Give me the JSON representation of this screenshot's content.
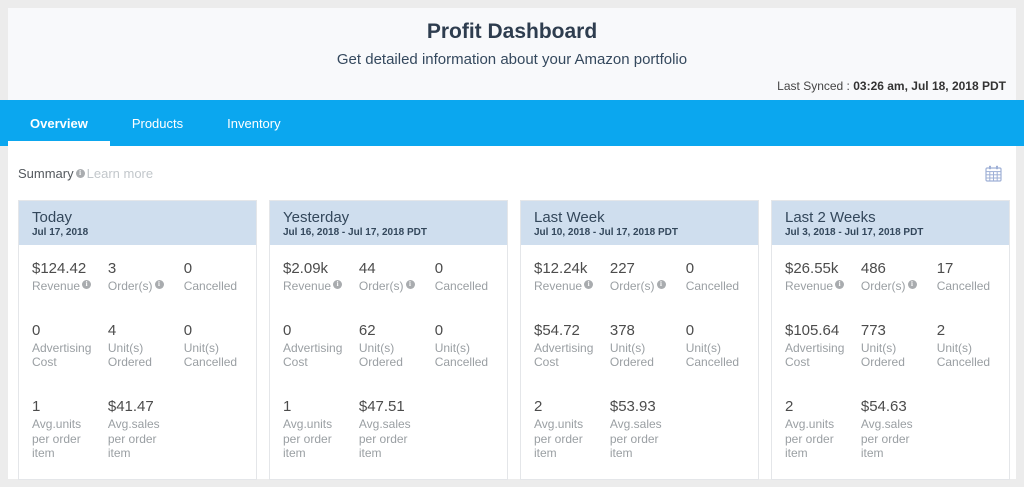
{
  "header": {
    "title": "Profit Dashboard",
    "subtitle": "Get detailed information about your Amazon portfolio",
    "last_synced_label": "Last Synced :",
    "last_synced_value": "03:26 am, Jul 18, 2018 PDT"
  },
  "tabs": [
    {
      "label": "Overview",
      "active": true
    },
    {
      "label": "Products",
      "active": false
    },
    {
      "label": "Inventory",
      "active": false
    }
  ],
  "summary": {
    "title": "Summary",
    "learn_more": "Learn more",
    "info_icon": "info-icon",
    "calendar_icon": "calendar-icon"
  },
  "colors": {
    "tab_bar_blue": "#0ba7ef",
    "card_header_bg": "#cfdeee",
    "heading_text": "#2e3d4f",
    "value_text": "#4c4c4c",
    "label_text": "#9a9fa3"
  },
  "cards": [
    {
      "title": "Today",
      "date_range": "Jul 17, 2018",
      "metrics": [
        {
          "value": "$124.42",
          "label": "Revenue",
          "info": true
        },
        {
          "value": "3",
          "label": "Order(s)",
          "info": true
        },
        {
          "value": "0",
          "label": "Cancelled",
          "info": false
        },
        {
          "value": "0",
          "label": "Advertising Cost",
          "info": false
        },
        {
          "value": "4",
          "label": "Unit(s) Ordered",
          "info": false
        },
        {
          "value": "0",
          "label": "Unit(s) Cancelled",
          "info": false
        },
        {
          "value": "1",
          "label": "Avg.units per order item",
          "info": false
        },
        {
          "value": "$41.47",
          "label": "Avg.sales per order item",
          "info": false
        }
      ]
    },
    {
      "title": "Yesterday",
      "date_range": "Jul 16, 2018 - Jul 17, 2018 PDT",
      "metrics": [
        {
          "value": "$2.09k",
          "label": "Revenue",
          "info": true
        },
        {
          "value": "44",
          "label": "Order(s)",
          "info": true
        },
        {
          "value": "0",
          "label": "Cancelled",
          "info": false
        },
        {
          "value": "0",
          "label": "Advertising Cost",
          "info": false
        },
        {
          "value": "62",
          "label": "Unit(s) Ordered",
          "info": false
        },
        {
          "value": "0",
          "label": "Unit(s) Cancelled",
          "info": false
        },
        {
          "value": "1",
          "label": "Avg.units per order item",
          "info": false
        },
        {
          "value": "$47.51",
          "label": "Avg.sales per order item",
          "info": false
        }
      ]
    },
    {
      "title": "Last Week",
      "date_range": "Jul 10, 2018 - Jul 17, 2018 PDT",
      "metrics": [
        {
          "value": "$12.24k",
          "label": "Revenue",
          "info": true
        },
        {
          "value": "227",
          "label": "Order(s)",
          "info": true
        },
        {
          "value": "0",
          "label": "Cancelled",
          "info": false
        },
        {
          "value": "$54.72",
          "label": "Advertising Cost",
          "info": false
        },
        {
          "value": "378",
          "label": "Unit(s) Ordered",
          "info": false
        },
        {
          "value": "0",
          "label": "Unit(s) Cancelled",
          "info": false
        },
        {
          "value": "2",
          "label": "Avg.units per order item",
          "info": false
        },
        {
          "value": "$53.93",
          "label": "Avg.sales per order item",
          "info": false
        }
      ]
    },
    {
      "title": "Last 2 Weeks",
      "date_range": "Jul 3, 2018 - Jul 17, 2018 PDT",
      "metrics": [
        {
          "value": "$26.55k",
          "label": "Revenue",
          "info": true
        },
        {
          "value": "486",
          "label": "Order(s)",
          "info": true
        },
        {
          "value": "17",
          "label": "Cancelled",
          "info": false
        },
        {
          "value": "$105.64",
          "label": "Advertising Cost",
          "info": false
        },
        {
          "value": "773",
          "label": "Unit(s) Ordered",
          "info": false
        },
        {
          "value": "2",
          "label": "Unit(s) Cancelled",
          "info": false
        },
        {
          "value": "2",
          "label": "Avg.units per order item",
          "info": false
        },
        {
          "value": "$54.63",
          "label": "Avg.sales per order item",
          "info": false
        }
      ]
    }
  ]
}
